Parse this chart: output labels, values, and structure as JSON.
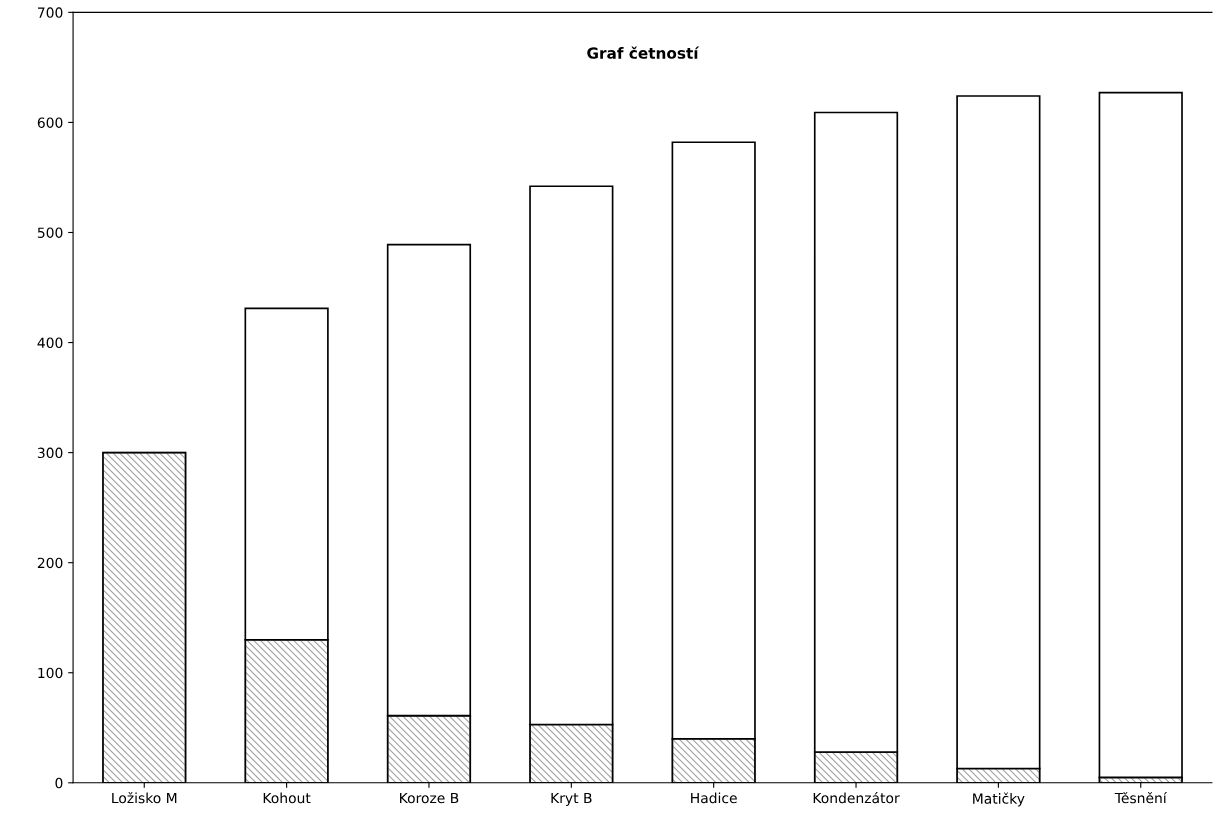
{
  "chart_data": {
    "type": "bar",
    "title": "Graf četností",
    "stacked": true,
    "categories": [
      "Ložisko M",
      "Kohout",
      "Koroze B",
      "Kryt B",
      "Hadice",
      "Kondenzátor",
      "Matičky",
      "Těsnění"
    ],
    "series": [
      {
        "color": "#a0a0a0",
        "values": [
          300,
          130,
          61,
          53,
          40,
          28,
          13,
          5
        ]
      },
      {
        "color": "#ffffff",
        "values": [
          null,
          301,
          428,
          489,
          542,
          581,
          611,
          622
        ]
      }
    ],
    "ylim": [
      0,
      700
    ],
    "yticks": [
      0,
      100,
      200,
      300,
      400,
      500,
      600,
      700
    ],
    "grid": false,
    "legend": false
  }
}
